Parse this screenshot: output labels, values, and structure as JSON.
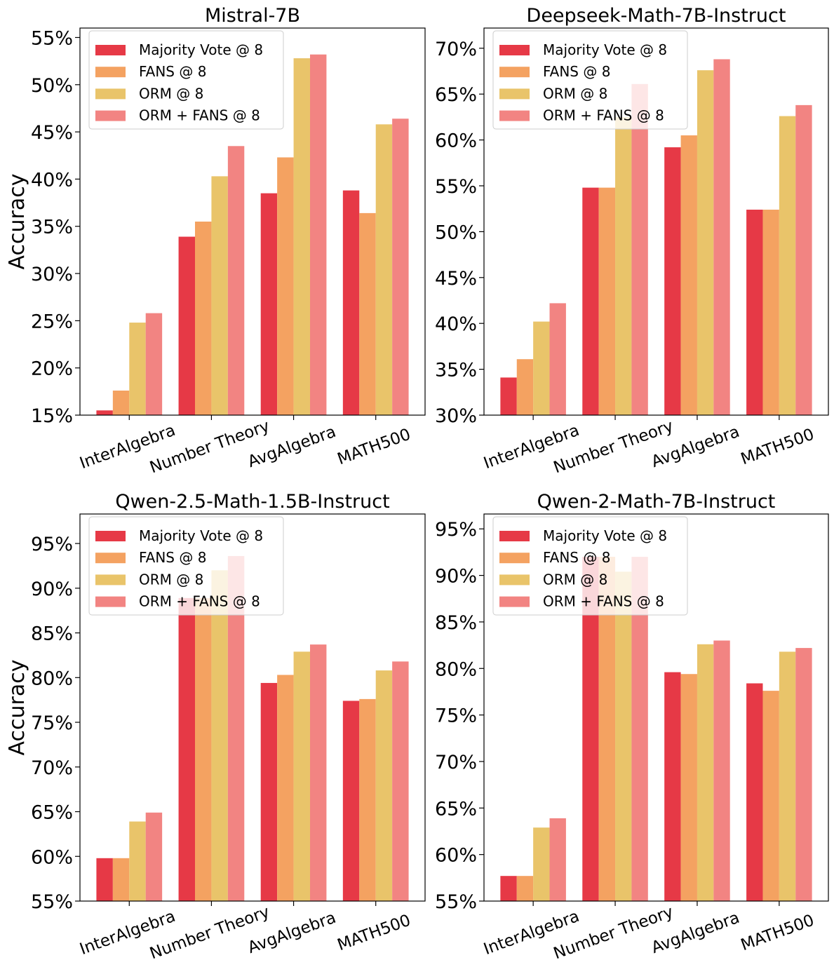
{
  "chart_data": [
    {
      "type": "bar",
      "title": "Mistral-7B",
      "ylabel": "Accuracy",
      "xlabel": "",
      "ylim": [
        15,
        56
      ],
      "yticks": [
        "15%",
        "20%",
        "25%",
        "30%",
        "35%",
        "40%",
        "45%",
        "50%",
        "55%"
      ],
      "yticks_values": [
        15,
        20,
        25,
        30,
        35,
        40,
        45,
        50,
        55
      ],
      "categories": [
        "InterAlgebra",
        "Number Theory",
        "AvgAlgebra",
        "MATH500"
      ],
      "series": [
        {
          "name": "Majority Vote @ 8",
          "values": [
            15.5,
            33.9,
            38.5,
            38.8
          ]
        },
        {
          "name": "FANS @ 8",
          "values": [
            17.6,
            35.5,
            42.3,
            36.4
          ]
        },
        {
          "name": "ORM @ 8",
          "values": [
            24.8,
            40.3,
            52.8,
            45.8
          ]
        },
        {
          "name": "ORM + FANS @ 8",
          "values": [
            25.8,
            43.5,
            53.2,
            46.4
          ]
        }
      ],
      "legend": "top-left",
      "grid": false
    },
    {
      "type": "bar",
      "title": "Deepseek-Math-7B-Instruct",
      "ylabel": "",
      "xlabel": "",
      "ylim": [
        30,
        72.2
      ],
      "yticks": [
        "30%",
        "35%",
        "40%",
        "45%",
        "50%",
        "55%",
        "60%",
        "65%",
        "70%"
      ],
      "yticks_values": [
        30,
        35,
        40,
        45,
        50,
        55,
        60,
        65,
        70
      ],
      "categories": [
        "InterAlgebra",
        "Number Theory",
        "AvgAlgebra",
        "MATH500"
      ],
      "series": [
        {
          "name": "Majority Vote @ 8",
          "values": [
            34.1,
            54.8,
            59.2,
            52.4
          ]
        },
        {
          "name": "FANS @ 8",
          "values": [
            36.1,
            54.8,
            60.5,
            52.4
          ]
        },
        {
          "name": "ORM @ 8",
          "values": [
            40.2,
            62.5,
            67.6,
            62.6
          ]
        },
        {
          "name": "ORM + FANS @ 8",
          "values": [
            42.2,
            66.1,
            68.8,
            63.8
          ]
        }
      ],
      "legend": "top-left",
      "grid": false
    },
    {
      "type": "bar",
      "title": "Qwen-2.5-Math-1.5B-Instruct",
      "ylabel": "Accuracy",
      "xlabel": "",
      "ylim": [
        55,
        98.3
      ],
      "yticks": [
        "55%",
        "60%",
        "65%",
        "70%",
        "75%",
        "80%",
        "85%",
        "90%",
        "95%"
      ],
      "yticks_values": [
        55,
        60,
        65,
        70,
        75,
        80,
        85,
        90,
        95
      ],
      "categories": [
        "InterAlgebra",
        "Number Theory",
        "AvgAlgebra",
        "MATH500"
      ],
      "series": [
        {
          "name": "Majority Vote @ 8",
          "values": [
            59.8,
            88.9,
            79.4,
            77.4
          ]
        },
        {
          "name": "FANS @ 8",
          "values": [
            59.8,
            88.9,
            80.3,
            77.6
          ]
        },
        {
          "name": "ORM @ 8",
          "values": [
            63.9,
            92.0,
            82.9,
            80.8
          ]
        },
        {
          "name": "ORM + FANS @ 8",
          "values": [
            64.9,
            93.6,
            83.7,
            81.8
          ]
        }
      ],
      "legend": "top-left",
      "grid": false
    },
    {
      "type": "bar",
      "title": "Qwen-2-Math-7B-Instruct",
      "ylabel": "",
      "xlabel": "",
      "ylim": [
        55,
        96.6
      ],
      "yticks": [
        "55%",
        "60%",
        "65%",
        "70%",
        "75%",
        "80%",
        "85%",
        "90%",
        "95%"
      ],
      "yticks_values": [
        55,
        60,
        65,
        70,
        75,
        80,
        85,
        90,
        95
      ],
      "categories": [
        "InterAlgebra",
        "Number Theory",
        "AvgAlgebra",
        "MATH500"
      ],
      "series": [
        {
          "name": "Majority Vote @ 8",
          "values": [
            57.7,
            92.0,
            79.6,
            78.4
          ]
        },
        {
          "name": "FANS @ 8",
          "values": [
            57.7,
            92.0,
            79.4,
            77.6
          ]
        },
        {
          "name": "ORM @ 8",
          "values": [
            62.9,
            90.4,
            82.6,
            81.8
          ]
        },
        {
          "name": "ORM + FANS @ 8",
          "values": [
            63.9,
            92.0,
            83.0,
            82.2
          ]
        }
      ],
      "legend": "top-left",
      "grid": false
    }
  ],
  "colors": [
    "#e63946",
    "#f4a261",
    "#e9c46a",
    "#f28482"
  ]
}
